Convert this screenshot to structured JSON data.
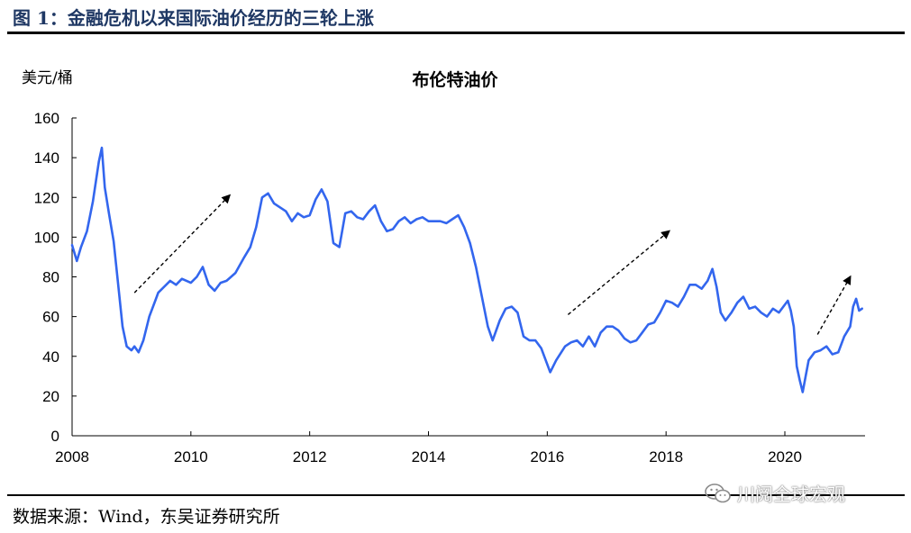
{
  "figure": {
    "title": "图 1：金融危机以来国际油价经历的三轮上涨",
    "source": "数据来源：Wind，东吴证券研究所",
    "watermark": "川阅全球宏观"
  },
  "colors": {
    "line": "#3366ee",
    "title": "#1f3864",
    "axis": "#000000",
    "arrow": "#000000"
  },
  "chart_data": {
    "type": "line",
    "title": "布伦特油价",
    "ylabel": "美元/桶",
    "xlabel": "",
    "ylim": [
      0,
      160
    ],
    "yticks": [
      0,
      20,
      40,
      60,
      80,
      100,
      120,
      140,
      160
    ],
    "xlim": [
      2008.0,
      2021.35
    ],
    "xticks": [
      2008,
      2010,
      2012,
      2014,
      2016,
      2018,
      2020
    ],
    "grid": false,
    "series": [
      {
        "name": "",
        "x": [
          2008.0,
          2008.08,
          2008.15,
          2008.25,
          2008.35,
          2008.45,
          2008.5,
          2008.55,
          2008.62,
          2008.7,
          2008.78,
          2008.85,
          2008.92,
          2009.0,
          2009.05,
          2009.12,
          2009.2,
          2009.3,
          2009.4,
          2009.45,
          2009.55,
          2009.65,
          2009.75,
          2009.85,
          2010.0,
          2010.1,
          2010.2,
          2010.3,
          2010.4,
          2010.5,
          2010.6,
          2010.75,
          2010.9,
          2011.0,
          2011.1,
          2011.2,
          2011.3,
          2011.4,
          2011.5,
          2011.6,
          2011.7,
          2011.8,
          2011.9,
          2012.0,
          2012.1,
          2012.2,
          2012.3,
          2012.4,
          2012.5,
          2012.6,
          2012.7,
          2012.8,
          2012.9,
          2013.0,
          2013.1,
          2013.2,
          2013.3,
          2013.4,
          2013.5,
          2013.6,
          2013.7,
          2013.8,
          2013.9,
          2014.0,
          2014.1,
          2014.2,
          2014.3,
          2014.4,
          2014.5,
          2014.6,
          2014.7,
          2014.8,
          2014.9,
          2015.0,
          2015.08,
          2015.2,
          2015.3,
          2015.4,
          2015.5,
          2015.6,
          2015.7,
          2015.8,
          2015.9,
          2016.0,
          2016.05,
          2016.15,
          2016.3,
          2016.4,
          2016.5,
          2016.6,
          2016.7,
          2016.8,
          2016.9,
          2017.0,
          2017.1,
          2017.2,
          2017.3,
          2017.4,
          2017.5,
          2017.6,
          2017.7,
          2017.8,
          2017.9,
          2018.0,
          2018.1,
          2018.2,
          2018.3,
          2018.4,
          2018.5,
          2018.6,
          2018.7,
          2018.78,
          2018.85,
          2018.92,
          2019.0,
          2019.1,
          2019.2,
          2019.3,
          2019.4,
          2019.5,
          2019.6,
          2019.7,
          2019.8,
          2019.9,
          2020.0,
          2020.05,
          2020.1,
          2020.15,
          2020.2,
          2020.25,
          2020.3,
          2020.35,
          2020.4,
          2020.5,
          2020.6,
          2020.7,
          2020.8,
          2020.9,
          2021.0,
          2021.1,
          2021.15,
          2021.2,
          2021.25,
          2021.3
        ],
        "values": [
          96,
          88,
          95,
          103,
          118,
          138,
          145,
          125,
          112,
          98,
          75,
          55,
          45,
          43,
          45,
          42,
          48,
          60,
          68,
          72,
          75,
          78,
          76,
          79,
          77,
          80,
          85,
          76,
          73,
          77,
          78,
          82,
          90,
          95,
          105,
          120,
          122,
          117,
          115,
          113,
          108,
          112,
          110,
          111,
          119,
          124,
          118,
          97,
          95,
          112,
          113,
          110,
          109,
          113,
          116,
          108,
          103,
          104,
          108,
          110,
          107,
          109,
          110,
          108,
          108,
          108,
          107,
          109,
          111,
          105,
          97,
          85,
          70,
          55,
          48,
          58,
          64,
          65,
          62,
          50,
          48,
          48,
          44,
          36,
          32,
          38,
          45,
          47,
          48,
          45,
          50,
          45,
          52,
          55,
          55,
          53,
          49,
          47,
          48,
          52,
          56,
          57,
          62,
          68,
          67,
          65,
          70,
          76,
          76,
          74,
          78,
          84,
          75,
          62,
          58,
          62,
          67,
          70,
          64,
          65,
          62,
          60,
          64,
          62,
          66,
          68,
          63,
          55,
          35,
          28,
          22,
          30,
          38,
          42,
          43,
          45,
          41,
          42,
          50,
          55,
          65,
          69,
          63,
          64
        ]
      }
    ],
    "annotations": [
      {
        "type": "arrow",
        "from": [
          2009.05,
          72
        ],
        "to": [
          2010.65,
          121
        ],
        "style": "dashed"
      },
      {
        "type": "arrow",
        "from": [
          2016.35,
          61
        ],
        "to": [
          2018.05,
          103
        ],
        "style": "dashed"
      },
      {
        "type": "arrow",
        "from": [
          2020.55,
          51
        ],
        "to": [
          2021.1,
          80
        ],
        "style": "dashed"
      }
    ]
  }
}
